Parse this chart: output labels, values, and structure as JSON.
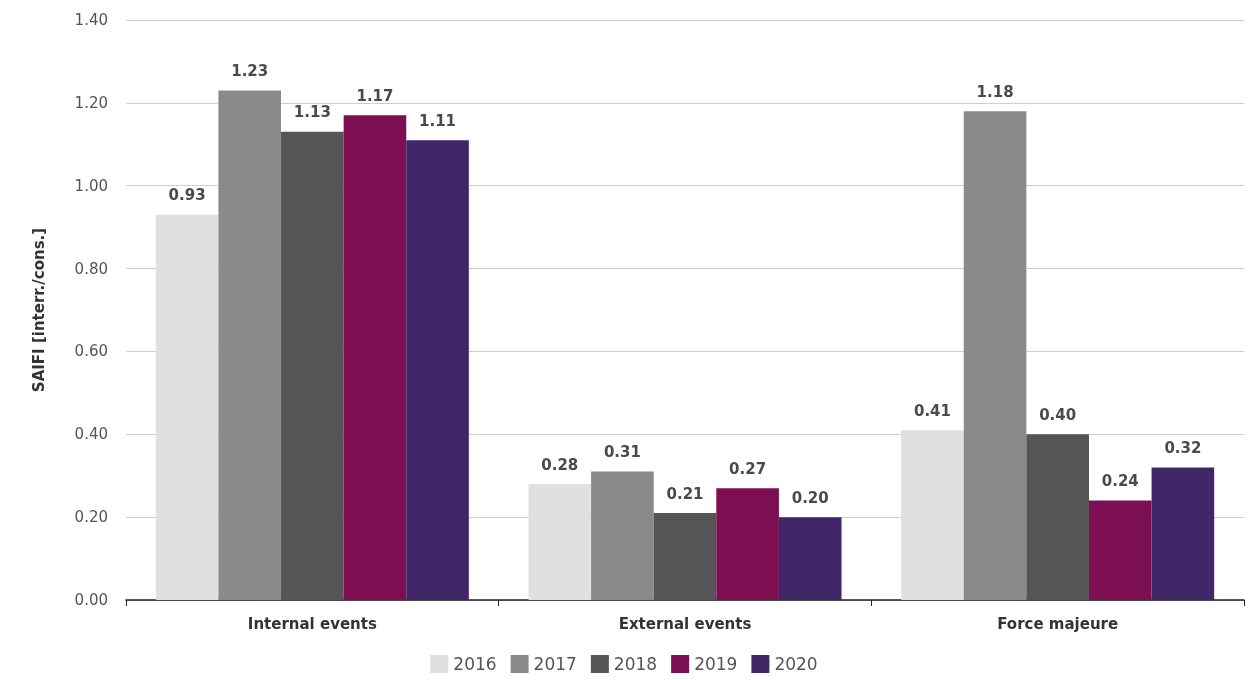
{
  "chart_data": {
    "type": "bar",
    "ylabel": "SAIFI [interr./cons.]",
    "categories": [
      "Internal events",
      "External events",
      "Force majeure"
    ],
    "series": [
      {
        "name": "2016",
        "color": "#e0e0e2",
        "values": [
          0.93,
          0.28,
          0.41
        ],
        "value_labels": [
          "0.93",
          "0.28",
          "0.41"
        ]
      },
      {
        "name": "2017",
        "color": "#8a8a8a",
        "values": [
          1.23,
          0.31,
          1.18
        ],
        "value_labels": [
          "1.23",
          "0.31",
          "1.18"
        ]
      },
      {
        "name": "2018",
        "color": "#555557",
        "values": [
          1.13,
          0.21,
          0.4
        ],
        "value_labels": [
          "1.13",
          "0.21",
          "0.40"
        ]
      },
      {
        "name": "2019",
        "color": "#7c0e52",
        "values": [
          1.17,
          0.27,
          0.24
        ],
        "value_labels": [
          "1.17",
          "0.27",
          "0.24"
        ]
      },
      {
        "name": "2020",
        "color": "#412768",
        "values": [
          1.11,
          0.2,
          0.32
        ],
        "value_labels": [
          "1.11",
          "0.20",
          "0.32"
        ]
      }
    ],
    "ylim": [
      0,
      1.4
    ],
    "yticks": [
      {
        "value": 0,
        "label": "0.00"
      },
      {
        "value": 0.2,
        "label": "0.20"
      },
      {
        "value": 0.4,
        "label": "0.40"
      },
      {
        "value": 0.6,
        "label": "0.60"
      },
      {
        "value": 0.8,
        "label": "0.80"
      },
      {
        "value": 1.0,
        "label": "1.00"
      },
      {
        "value": 1.2,
        "label": "1.20"
      },
      {
        "value": 1.4,
        "label": "1.40"
      }
    ],
    "grid": "y",
    "legend": "bottom"
  }
}
